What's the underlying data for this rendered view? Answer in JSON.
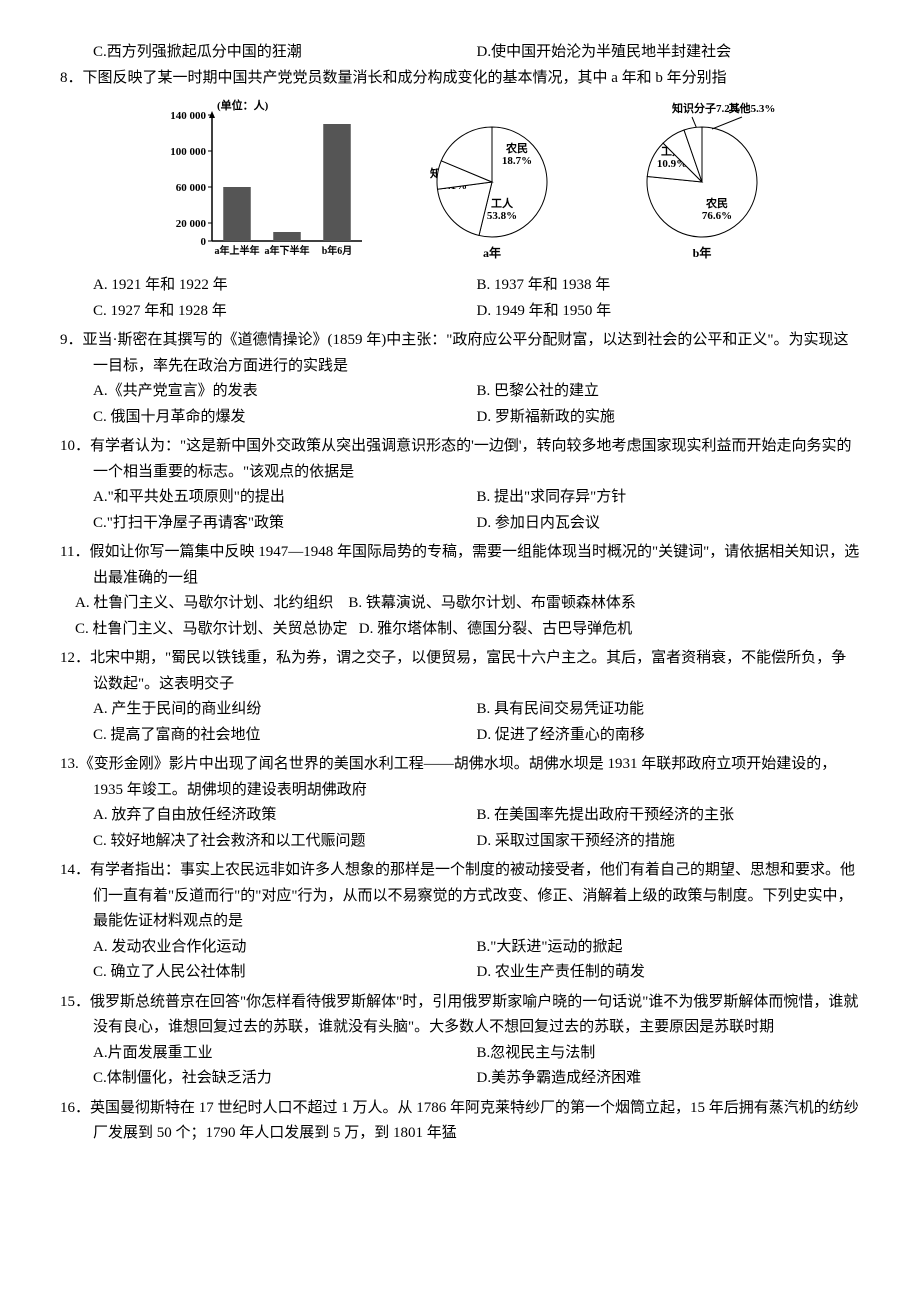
{
  "q7_opts": {
    "c": "C.西方列强掀起瓜分中国的狂潮",
    "d": "D.使中国开始沦为半殖民地半封建社会"
  },
  "q8": {
    "stem": "8．下图反映了某一时期中国共产党党员数量消长和成分构成变化的基本情况，其中 a 年和 b 年分别指",
    "optA": "A. 1921 年和 1922 年",
    "optB": "B. 1937 年和 1938 年",
    "optC": "C. 1927 年和 1928 年",
    "optD": "D. 1949 年和 1950 年"
  },
  "bar_chart": {
    "unit_label": "(单位：人)",
    "y_ticks": [
      "140 000",
      "100 000",
      "60 000",
      "20 000",
      "0"
    ],
    "x_labels": [
      "a年上半年",
      "a年下半年",
      "b年6月"
    ],
    "values": [
      60000,
      10000,
      130000
    ],
    "y_max": 140000,
    "bar_fill": "#555555",
    "axis_color": "#000000",
    "bg": "#ffffff"
  },
  "pie_a": {
    "label": "a年",
    "slices": [
      {
        "name": "工人",
        "pct": 53.8,
        "text": "工人\n53.8%"
      },
      {
        "name": "知识分子",
        "pct": 19.1,
        "text": "知识分子\n19.1%"
      },
      {
        "name": "其他",
        "pct": 8.4,
        "text": "其他\n8.4%"
      },
      {
        "name": "农民",
        "pct": 18.7,
        "text": "农民\n18.7%"
      }
    ],
    "stroke": "#000000",
    "fill": "#ffffff"
  },
  "pie_b": {
    "label": "b年",
    "slices": [
      {
        "name": "农民",
        "pct": 76.6,
        "text": "农民\n76.6%"
      },
      {
        "name": "工人",
        "pct": 10.9,
        "text": "工人\n10.9%"
      },
      {
        "name": "知识分子",
        "pct": 7.2,
        "text": "知识分子7.2%"
      },
      {
        "name": "其他",
        "pct": 5.3,
        "text": "其他5.3%"
      }
    ],
    "stroke": "#000000",
    "fill": "#ffffff"
  },
  "q9": {
    "stem": "9．亚当·斯密在其撰写的《道德情操论》(1859 年)中主张：\"政府应公平分配财富，以达到社会的公平和正义\"。为实现这一目标，率先在政治方面进行的实践是",
    "optA": "A.《共产党宣言》的发表",
    "optB": "B. 巴黎公社的建立",
    "optC": "C. 俄国十月革命的爆发",
    "optD": "D. 罗斯福新政的实施"
  },
  "q10": {
    "stem": "10．有学者认为：\"这是新中国外交政策从突出强调意识形态的'一边倒'，转向较多地考虑国家现实利益而开始走向务实的一个相当重要的标志。\"该观点的依据是",
    "optA": "A.\"和平共处五项原则\"的提出",
    "optB": "B. 提出\"求同存异\"方针",
    "optC": "C.\"打扫干净屋子再请客\"政策",
    "optD": "D. 参加日内瓦会议"
  },
  "q11": {
    "stem": "11．假如让你写一篇集中反映 1947—1948 年国际局势的专稿，需要一组能体现当时概况的\"关键词\"，请依据相关知识，选出最准确的一组",
    "optA": "A. 杜鲁门主义、马歇尔计划、北约组织",
    "optB": "B. 铁幕演说、马歇尔计划、布雷顿森林体系",
    "optC": "C. 杜鲁门主义、马歇尔计划、关贸总协定",
    "optD": "D. 雅尔塔体制、德国分裂、古巴导弹危机"
  },
  "q12": {
    "stem": "12．北宋中期，\"蜀民以铁钱重，私为券，谓之交子，以便贸易，富民十六户主之。其后，富者资稍衰，不能偿所负，争讼数起\"。这表明交子",
    "optA": "A. 产生于民间的商业纠纷",
    "optB": "B. 具有民间交易凭证功能",
    "optC": "C. 提高了富商的社会地位",
    "optD": "D. 促进了经济重心的南移"
  },
  "q13": {
    "stem": "13.《变形金刚》影片中出现了闻名世界的美国水利工程——胡佛水坝。胡佛水坝是 1931 年联邦政府立项开始建设的，1935 年竣工。胡佛坝的建设表明胡佛政府",
    "optA": "A. 放弃了自由放任经济政策",
    "optB": "B. 在美国率先提出政府干预经济的主张",
    "optC": "C. 较好地解决了社会救济和以工代赈问题",
    "optD": "D. 采取过国家干预经济的措施"
  },
  "q14": {
    "stem": "14．有学者指出：事实上农民远非如许多人想象的那样是一个制度的被动接受者，他们有着自己的期望、思想和要求。他们一直有着\"反道而行\"的\"对应\"行为，从而以不易察觉的方式改变、修正、消解着上级的政策与制度。下列史实中，最能佐证材料观点的是",
    "optA": "A. 发动农业合作化运动",
    "optB": "B.\"大跃进\"运动的掀起",
    "optC": "C. 确立了人民公社体制",
    "optD": "D. 农业生产责任制的萌发"
  },
  "q15": {
    "stem": "15．俄罗斯总统普京在回答\"你怎样看待俄罗斯解体\"时，引用俄罗斯家喻户晓的一句话说\"谁不为俄罗斯解体而惋惜，谁就没有良心，谁想回复过去的苏联，谁就没有头脑\"。大多数人不想回复过去的苏联，主要原因是苏联时期",
    "optA": "A.片面发展重工业",
    "optB": "B.忽视民主与法制",
    "optC": "C.体制僵化，社会缺乏活力",
    "optD": "D.美苏争霸造成经济困难"
  },
  "q16": {
    "stem": "16．英国曼彻斯特在 17 世纪时人口不超过 1 万人。从 1786 年阿克莱特纱厂的第一个烟筒立起，15 年后拥有蒸汽机的纺纱厂发展到 50 个；1790 年人口发展到 5 万，到 1801 年猛"
  }
}
